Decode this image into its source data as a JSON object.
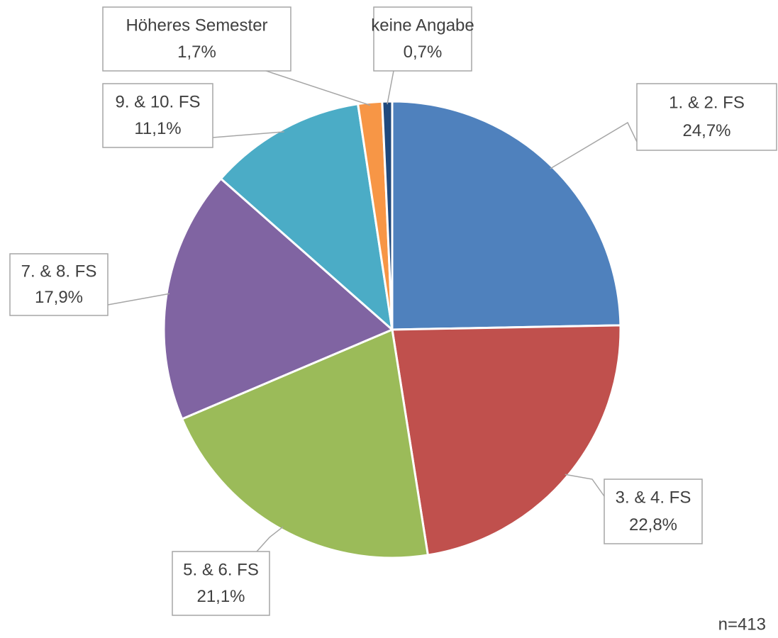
{
  "chart_data": {
    "type": "pie",
    "categories": [
      "1. & 2. FS",
      "3. & 4. FS",
      "5. & 6. FS",
      "7. & 8. FS",
      "9. & 10. FS",
      "Höheres Semester",
      "keine Angabe"
    ],
    "values": [
      24.7,
      22.8,
      21.1,
      17.9,
      11.1,
      1.7,
      0.7
    ],
    "value_labels": [
      "24,7%",
      "22,8%",
      "21,1%",
      "17,9%",
      "11,1%",
      "1,7%",
      "0,7%"
    ],
    "colors": [
      "#4f81bd",
      "#c0504d",
      "#9bbb59",
      "#8064a2",
      "#4bacc6",
      "#f79646",
      "#1f497d"
    ],
    "annotation": "n=413"
  }
}
